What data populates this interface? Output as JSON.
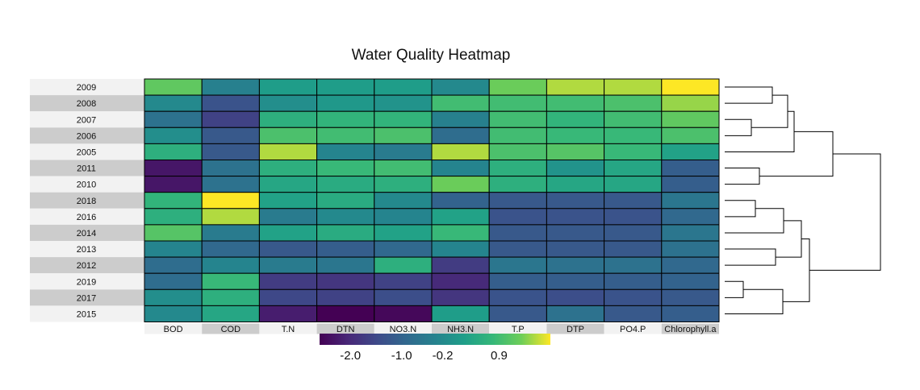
{
  "chart_data": {
    "type": "heatmap",
    "title": "Water Quality Heatmap",
    "rows": [
      "2009",
      "2008",
      "2007",
      "2006",
      "2005",
      "2011",
      "2010",
      "2018",
      "2016",
      "2014",
      "2013",
      "2012",
      "2019",
      "2017",
      "2015"
    ],
    "columns": [
      "BOD",
      "COD",
      "T.N",
      "DTN",
      "NO3.N",
      "NH3.N",
      "T.P",
      "DTP",
      "PO4.P",
      "Chlorophyll.a"
    ],
    "values": [
      [
        1.2,
        -0.4,
        0.2,
        0.2,
        0.2,
        -0.2,
        1.3,
        1.6,
        1.6,
        1.9
      ],
      [
        -0.2,
        -1.3,
        -0.1,
        0.1,
        0.0,
        0.9,
        0.9,
        0.9,
        1.0,
        1.5
      ],
      [
        -0.7,
        -1.6,
        0.6,
        0.7,
        0.7,
        -0.4,
        0.9,
        0.7,
        0.9,
        1.2
      ],
      [
        -0.1,
        -1.2,
        1.0,
        0.9,
        1.0,
        -0.8,
        0.9,
        0.8,
        0.8,
        1.0
      ],
      [
        0.6,
        -1.2,
        1.6,
        -0.3,
        -0.5,
        1.6,
        1.0,
        1.1,
        0.8,
        0.3
      ],
      [
        -2.3,
        -0.7,
        0.6,
        0.8,
        0.9,
        -0.3,
        0.6,
        0.0,
        0.4,
        -1.1
      ],
      [
        -2.3,
        -0.7,
        0.4,
        0.5,
        0.6,
        1.3,
        0.6,
        0.4,
        0.4,
        -1.1
      ],
      [
        0.7,
        1.9,
        0.3,
        0.5,
        -0.2,
        -1.0,
        -1.2,
        -1.2,
        -1.2,
        -0.6
      ],
      [
        0.6,
        1.6,
        -0.5,
        -0.2,
        -0.3,
        0.3,
        -1.3,
        -1.3,
        -1.3,
        -0.9
      ],
      [
        1.1,
        -0.5,
        0.3,
        0.5,
        0.3,
        0.8,
        -1.2,
        -1.2,
        -1.2,
        -0.6
      ],
      [
        -0.3,
        -0.9,
        -1.2,
        -1.1,
        -0.9,
        -0.3,
        -1.2,
        -1.2,
        -1.2,
        -0.7
      ],
      [
        -0.8,
        -0.3,
        -0.5,
        -0.6,
        0.6,
        -1.7,
        -0.6,
        -0.7,
        -0.7,
        -0.9
      ],
      [
        -0.8,
        0.8,
        -1.7,
        -1.8,
        -1.6,
        -2.0,
        -1.1,
        -1.1,
        -1.1,
        -1.0
      ],
      [
        -0.1,
        0.6,
        -1.5,
        -1.6,
        -1.4,
        -1.8,
        -1.3,
        -1.4,
        -1.3,
        -1.2
      ],
      [
        -0.2,
        0.4,
        -2.2,
        -2.6,
        -2.5,
        0.2,
        -1.2,
        -0.7,
        -1.2,
        -1.1
      ]
    ],
    "colorbar": {
      "palette": "viridis",
      "range": [
        -2.6,
        1.9
      ],
      "ticks": [
        -2.0,
        -1.0,
        -0.2,
        0.9
      ],
      "tick_labels": [
        "-2.0",
        "-1.0",
        "-0.2",
        "0.9"
      ]
    },
    "dendrogram": {
      "side": "right"
    }
  }
}
